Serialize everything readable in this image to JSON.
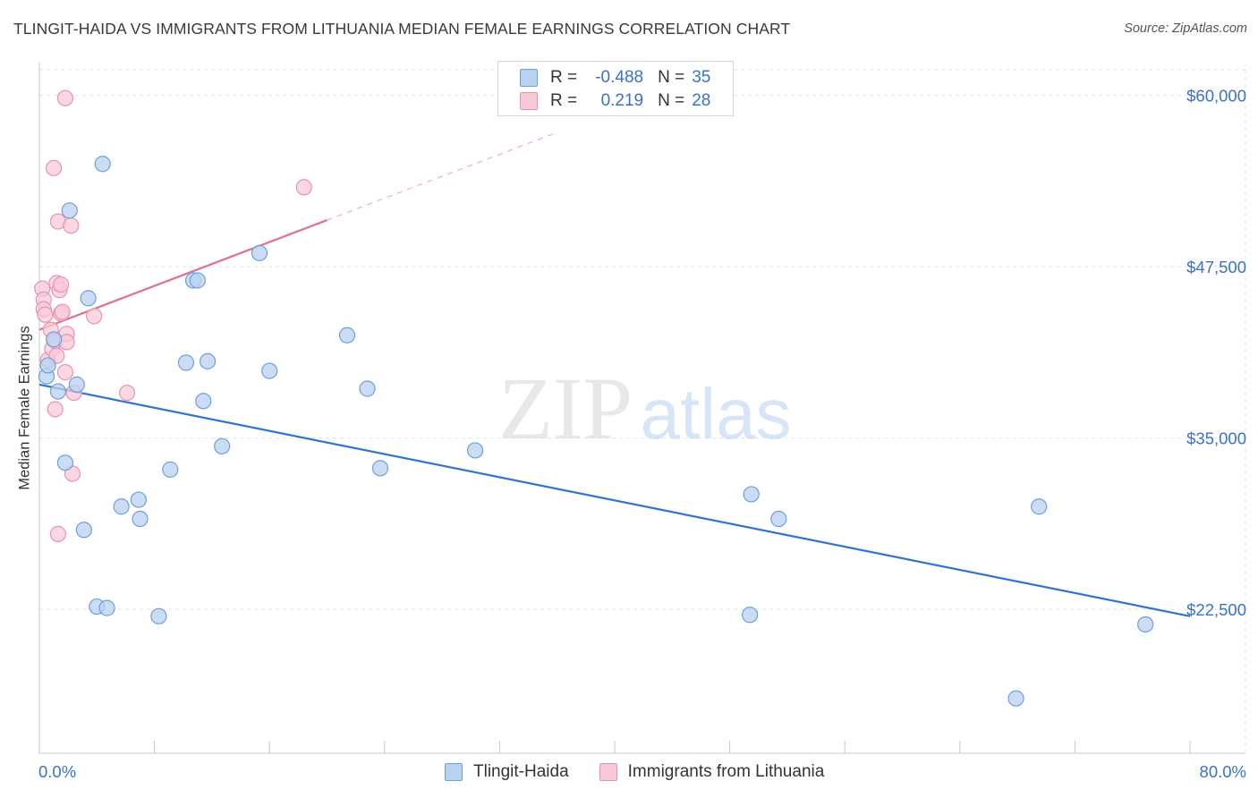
{
  "header": {
    "title": "TLINGIT-HAIDA VS IMMIGRANTS FROM LITHUANIA MEDIAN FEMALE EARNINGS CORRELATION CHART",
    "source": "Source: ZipAtlas.com"
  },
  "watermark": {
    "zip": "ZIP",
    "atlas": "atlas"
  },
  "legend_stats": [
    {
      "r_label": "R =",
      "r_value": "-0.488",
      "n_label": "N =",
      "n_value": "35"
    },
    {
      "r_label": "R =",
      "r_value": "0.219",
      "n_label": "N =",
      "n_value": "28"
    }
  ],
  "chart_data": {
    "type": "scatter",
    "title": "TLINGIT-HAIDA VS IMMIGRANTS FROM LITHUANIA MEDIAN FEMALE EARNINGS CORRELATION CHART",
    "xlabel": "",
    "ylabel": "Median Female Earnings",
    "xlim": [
      0,
      80
    ],
    "ylim": [
      12000,
      63000
    ],
    "x_tick_labels": [
      "0.0%",
      "80.0%"
    ],
    "y_tick_labels": [
      "$22,500",
      "$35,000",
      "$47,500",
      "$60,000"
    ],
    "y_ticks": [
      22500,
      35000,
      47500,
      60000
    ],
    "grid": "horizontal dashed",
    "colors": {
      "tlingit_fill": "#b9d2f2",
      "tlingit_stroke": "#6d9fde",
      "tlingit_line": "#2f74d0",
      "lith_fill": "#f9c9d7",
      "lith_stroke": "#e893ad",
      "lith_line": "#e0708f",
      "axis_label": "#3a72c8"
    },
    "series": [
      {
        "name": "Tlingit-Haida",
        "r": -0.488,
        "n": 35,
        "trend": {
          "x": [
            0,
            80
          ],
          "y": [
            38900,
            22000
          ]
        },
        "points": [
          [
            0.5,
            39500
          ],
          [
            0.6,
            40300
          ],
          [
            1.0,
            42200
          ],
          [
            1.3,
            38400
          ],
          [
            1.8,
            33200
          ],
          [
            2.1,
            51600
          ],
          [
            2.6,
            38900
          ],
          [
            3.1,
            28300
          ],
          [
            3.4,
            45200
          ],
          [
            4.0,
            22700
          ],
          [
            4.4,
            55000
          ],
          [
            4.7,
            22600
          ],
          [
            5.7,
            30000
          ],
          [
            6.9,
            30500
          ],
          [
            7.0,
            29100
          ],
          [
            8.3,
            22000
          ],
          [
            9.1,
            32700
          ],
          [
            10.2,
            40500
          ],
          [
            10.7,
            46500
          ],
          [
            11.0,
            46500
          ],
          [
            11.7,
            40600
          ],
          [
            11.4,
            37700
          ],
          [
            12.7,
            34400
          ],
          [
            15.3,
            48500
          ],
          [
            16.0,
            39900
          ],
          [
            21.4,
            42500
          ],
          [
            22.8,
            38600
          ],
          [
            23.7,
            32800
          ],
          [
            30.3,
            34100
          ],
          [
            49.4,
            22100
          ],
          [
            49.5,
            30900
          ],
          [
            51.4,
            29100
          ],
          [
            67.9,
            16000
          ],
          [
            69.5,
            30000
          ],
          [
            76.9,
            21400
          ]
        ]
      },
      {
        "name": "Immigrants from Lithuania",
        "r": 0.219,
        "n": 28,
        "trend": {
          "x": [
            0,
            20
          ],
          "y": [
            42900,
            50900
          ]
        },
        "points": [
          [
            0.2,
            45900
          ],
          [
            0.3,
            45100
          ],
          [
            0.3,
            44400
          ],
          [
            0.4,
            44000
          ],
          [
            0.6,
            40700
          ],
          [
            0.8,
            42900
          ],
          [
            0.9,
            41500
          ],
          [
            1.1,
            37100
          ],
          [
            1.0,
            54700
          ],
          [
            1.2,
            41000
          ],
          [
            1.3,
            28000
          ],
          [
            1.3,
            50800
          ],
          [
            1.1,
            42100
          ],
          [
            1.2,
            46300
          ],
          [
            1.4,
            45800
          ],
          [
            1.5,
            46200
          ],
          [
            1.5,
            44100
          ],
          [
            1.6,
            44200
          ],
          [
            1.8,
            39800
          ],
          [
            1.9,
            42600
          ],
          [
            1.9,
            42000
          ],
          [
            1.8,
            59800
          ],
          [
            2.2,
            50500
          ],
          [
            2.3,
            32400
          ],
          [
            2.4,
            38300
          ],
          [
            3.8,
            43900
          ],
          [
            6.1,
            38300
          ],
          [
            18.4,
            53300
          ]
        ]
      }
    ]
  }
}
